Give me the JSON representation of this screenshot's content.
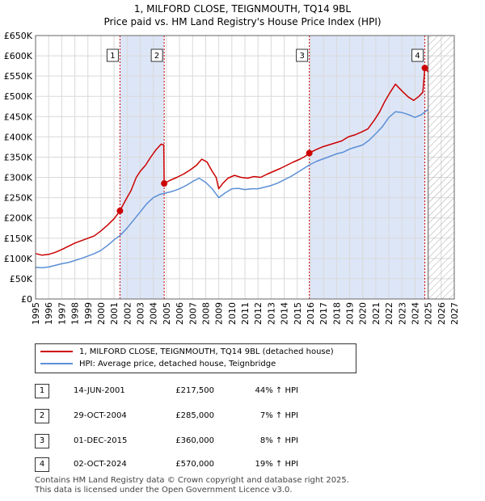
{
  "header": {
    "title": "1, MILFORD CLOSE, TEIGNMOUTH, TQ14 9BL",
    "subtitle": "Price paid vs. HM Land Registry's House Price Index (HPI)"
  },
  "colors": {
    "property": "#cc0000",
    "hpi": "#5b8fd6",
    "shade": "#dde6f7",
    "grid": "#d9d9d9",
    "marker_line": "#cc0000"
  },
  "legend": {
    "property_label": "1, MILFORD CLOSE, TEIGNMOUTH, TQ14 9BL (detached house)",
    "hpi_label": "HPI: Average price, detached house, Teignbridge"
  },
  "transactions": [
    {
      "num": "1",
      "date": "14-JUN-2001",
      "price": "£217,500",
      "hpi": "44% ↑ HPI"
    },
    {
      "num": "2",
      "date": "29-OCT-2004",
      "price": "£285,000",
      "hpi": "7% ↑ HPI"
    },
    {
      "num": "3",
      "date": "01-DEC-2015",
      "price": "£360,000",
      "hpi": "8% ↑ HPI"
    },
    {
      "num": "4",
      "date": "02-OCT-2024",
      "price": "£570,000",
      "hpi": "19% ↑ HPI"
    }
  ],
  "footer": {
    "line1": "Contains HM Land Registry data © Crown copyright and database right 2025.",
    "line2": "This data is licensed under the Open Government Licence v3.0."
  },
  "chart_data": {
    "type": "line",
    "title": "1, MILFORD CLOSE, TEIGNMOUTH, TQ14 9BL",
    "subtitle": "Price paid vs. HM Land Registry's House Price Index (HPI)",
    "xlabel": "",
    "ylabel": "",
    "xlim": [
      1995,
      2027
    ],
    "ylim": [
      0,
      650000
    ],
    "x_ticks": [
      1995,
      1996,
      1997,
      1998,
      1999,
      2000,
      2001,
      2002,
      2003,
      2004,
      2005,
      2006,
      2007,
      2008,
      2009,
      2010,
      2011,
      2012,
      2013,
      2014,
      2015,
      2016,
      2017,
      2018,
      2019,
      2020,
      2021,
      2022,
      2023,
      2024,
      2025,
      2026,
      2027
    ],
    "y_ticks": [
      0,
      50000,
      100000,
      150000,
      200000,
      250000,
      300000,
      350000,
      400000,
      450000,
      500000,
      550000,
      600000,
      650000
    ],
    "y_tick_labels": [
      "£0",
      "£50K",
      "£100K",
      "£150K",
      "£200K",
      "£250K",
      "£300K",
      "£350K",
      "£400K",
      "£450K",
      "£500K",
      "£550K",
      "£600K",
      "£650K"
    ],
    "grid": true,
    "forecast_from": 2025.0,
    "shaded_periods": [
      [
        2001.45,
        2004.83
      ],
      [
        2015.92,
        2024.75
      ]
    ],
    "sales": [
      {
        "label": "1",
        "x": 2001.45,
        "y": 217500
      },
      {
        "label": "2",
        "x": 2004.83,
        "y": 285000
      },
      {
        "label": "3",
        "x": 2015.92,
        "y": 360000
      },
      {
        "label": "4",
        "x": 2024.75,
        "y": 570000
      }
    ],
    "series": [
      {
        "name": "1, MILFORD CLOSE, TEIGNMOUTH, TQ14 9BL (detached house)",
        "color": "#cc0000",
        "x": [
          1995,
          1995.5,
          1996,
          1996.5,
          1997,
          1997.5,
          1998,
          1998.5,
          1999,
          1999.5,
          2000,
          2000.5,
          2001,
          2001.45,
          2001.9,
          2002.3,
          2002.7,
          2003,
          2003.4,
          2003.8,
          2004.2,
          2004.6,
          2004.8,
          2004.83,
          2005.3,
          2005.8,
          2006.3,
          2006.8,
          2007.3,
          2007.7,
          2008.1,
          2008.5,
          2008.8,
          2009.0,
          2009.3,
          2009.7,
          2010.2,
          2010.7,
          2011.2,
          2011.7,
          2012.2,
          2012.7,
          2013.2,
          2013.7,
          2014.2,
          2014.7,
          2015.2,
          2015.6,
          2015.92,
          2016.4,
          2016.9,
          2017.4,
          2017.9,
          2018.4,
          2018.9,
          2019.4,
          2019.9,
          2020.4,
          2020.9,
          2021.3,
          2021.7,
          2022.1,
          2022.5,
          2022.8,
          2023.1,
          2023.5,
          2023.9,
          2024.3,
          2024.6,
          2024.75,
          2024.9,
          2025.0
        ],
        "y": [
          112000,
          108000,
          110000,
          115000,
          122000,
          130000,
          138000,
          144000,
          150000,
          156000,
          168000,
          182000,
          198000,
          217500,
          245000,
          268000,
          300000,
          315000,
          330000,
          350000,
          368000,
          382000,
          380000,
          285000,
          293000,
          300000,
          308000,
          318000,
          330000,
          345000,
          338000,
          315000,
          300000,
          272000,
          285000,
          298000,
          305000,
          300000,
          298000,
          302000,
          300000,
          308000,
          315000,
          322000,
          330000,
          338000,
          345000,
          352000,
          360000,
          368000,
          375000,
          380000,
          385000,
          390000,
          400000,
          405000,
          412000,
          420000,
          442000,
          462000,
          488000,
          510000,
          530000,
          520000,
          510000,
          498000,
          490000,
          500000,
          510000,
          570000,
          565000,
          560000
        ]
      },
      {
        "name": "HPI: Average price, detached house, Teignbridge",
        "color": "#5b8fd6",
        "x": [
          1995,
          1995.5,
          1996,
          1996.5,
          1997,
          1997.5,
          1998,
          1998.5,
          1999,
          1999.5,
          2000,
          2000.5,
          2001,
          2001.5,
          2002,
          2002.5,
          2003,
          2003.5,
          2004,
          2004.5,
          2005,
          2005.5,
          2006,
          2006.5,
          2007,
          2007.5,
          2008,
          2008.5,
          2009,
          2009.5,
          2010,
          2010.5,
          2011,
          2011.5,
          2012,
          2012.5,
          2013,
          2013.5,
          2014,
          2014.5,
          2015,
          2015.5,
          2016,
          2016.5,
          2017,
          2017.5,
          2018,
          2018.5,
          2019,
          2019.5,
          2020,
          2020.5,
          2021,
          2021.5,
          2022,
          2022.5,
          2023,
          2023.5,
          2024,
          2024.5,
          2025.0
        ],
        "y": [
          78000,
          77000,
          79000,
          83000,
          87000,
          90000,
          95000,
          100000,
          106000,
          112000,
          120000,
          132000,
          146000,
          158000,
          175000,
          195000,
          215000,
          235000,
          250000,
          258000,
          262000,
          266000,
          272000,
          280000,
          290000,
          298000,
          288000,
          272000,
          250000,
          262000,
          272000,
          273000,
          270000,
          272000,
          272000,
          276000,
          280000,
          286000,
          294000,
          302000,
          312000,
          322000,
          332000,
          340000,
          346000,
          352000,
          358000,
          362000,
          370000,
          375000,
          380000,
          392000,
          408000,
          425000,
          448000,
          462000,
          460000,
          455000,
          448000,
          455000,
          468000
        ]
      }
    ]
  }
}
